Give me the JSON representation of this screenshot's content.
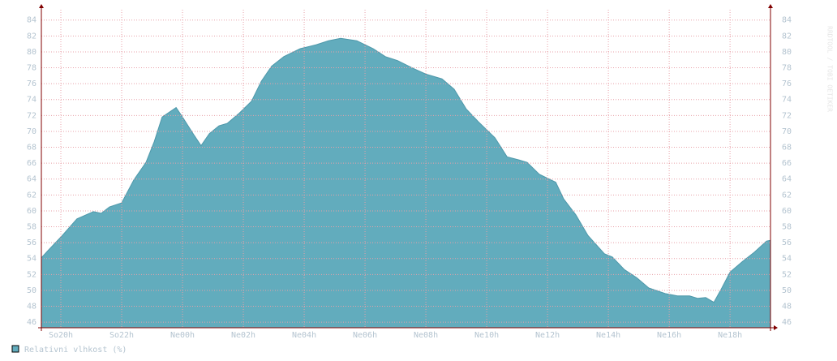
{
  "chart_data": {
    "type": "area",
    "x": [
      19.36,
      19.6,
      20,
      20.53,
      21.07,
      21.33,
      21.6,
      22,
      22.4,
      22.8,
      23.07,
      23.33,
      23.6,
      23.79,
      24,
      24.35,
      24.61,
      24.88,
      25.2,
      25.47,
      25.87,
      26.27,
      26.59,
      26.93,
      27.33,
      27.87,
      28.4,
      28.8,
      29.2,
      29.73,
      30.27,
      30.67,
      31.07,
      31.6,
      32,
      32.53,
      32.93,
      33.33,
      33.73,
      34.27,
      34.67,
      35.07,
      35.33,
      35.73,
      36.27,
      36.53,
      36.93,
      37.33,
      37.87,
      38.13,
      38.53,
      38.93,
      39.33,
      39.87,
      40.27,
      40.67,
      40.93,
      41.2,
      41.47,
      41.73,
      42,
      42.4,
      42.8,
      43.2,
      43.33
    ],
    "series": [
      {
        "name": "Relativni vlhkost (%)",
        "color": "#62acbd",
        "values": [
          54.1,
          55.1,
          56.7,
          59.0,
          59.9,
          59.7,
          60.5,
          61.0,
          63.9,
          66.1,
          68.7,
          71.8,
          72.5,
          73.0,
          71.8,
          69.7,
          68.2,
          69.7,
          70.7,
          71.0,
          72.3,
          73.8,
          76.3,
          78.2,
          79.4,
          80.4,
          80.9,
          81.4,
          81.7,
          81.4,
          80.4,
          79.4,
          78.9,
          77.9,
          77.2,
          76.6,
          75.3,
          72.8,
          71.2,
          69.2,
          66.8,
          66.4,
          66.1,
          64.6,
          63.6,
          61.5,
          59.5,
          56.9,
          54.6,
          54.2,
          52.6,
          51.6,
          50.3,
          49.6,
          49.3,
          49.3,
          49.0,
          49.1,
          48.5,
          50.3,
          52.3,
          53.6,
          54.8,
          56.2,
          56.3
        ]
      }
    ],
    "xlim": [
      19.36,
      43.33
    ],
    "xticks": [
      {
        "value": 20,
        "label": "So20h"
      },
      {
        "value": 22,
        "label": "So22h"
      },
      {
        "value": 24,
        "label": "Ne00h"
      },
      {
        "value": 26,
        "label": "Ne02h"
      },
      {
        "value": 28,
        "label": "Ne04h"
      },
      {
        "value": 30,
        "label": "Ne06h"
      },
      {
        "value": 32,
        "label": "Ne08h"
      },
      {
        "value": 34,
        "label": "Ne10h"
      },
      {
        "value": 36,
        "label": "Ne12h"
      },
      {
        "value": 38,
        "label": "Ne14h"
      },
      {
        "value": 40,
        "label": "Ne16h"
      },
      {
        "value": 42,
        "label": "Ne18h"
      }
    ],
    "ylim": [
      45.3,
      85.3
    ],
    "yticks": [
      46,
      48,
      50,
      52,
      54,
      56,
      58,
      60,
      62,
      64,
      66,
      68,
      70,
      72,
      74,
      76,
      78,
      80,
      82,
      84
    ],
    "y2lim": [
      45.3,
      85.3
    ],
    "y2ticks": [
      46,
      48,
      50,
      52,
      54,
      56,
      58,
      60,
      62,
      64,
      66,
      68,
      70,
      72,
      74,
      76,
      78,
      80,
      82,
      84
    ],
    "grid": true,
    "watermark": "RRDTOOL / TOBI OETIKER"
  }
}
